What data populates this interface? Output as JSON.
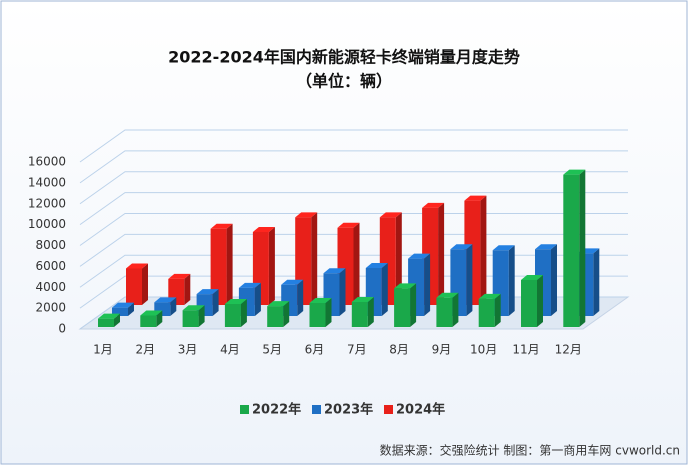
{
  "chart_data": {
    "type": "bar3d",
    "title": "2022-2024年国内新能源轻卡终端销量月度走势",
    "subtitle": "（单位：辆）",
    "source": "数据来源：交强险统计  制图：第一商用车网 cvworld.cn",
    "categories": [
      "1月",
      "2月",
      "3月",
      "4月",
      "5月",
      "6月",
      "7月",
      "8月",
      "9月",
      "10月",
      "11月",
      "12月"
    ],
    "series": [
      {
        "name": "2022年",
        "color": "#1aa84a",
        "values": [
          800,
          1100,
          1600,
          2200,
          2000,
          2300,
          2400,
          3700,
          2800,
          2700,
          4500,
          14600
        ]
      },
      {
        "name": "2023年",
        "color": "#1f6fc4",
        "values": [
          800,
          1300,
          2100,
          2700,
          3000,
          4100,
          4600,
          5500,
          6400,
          6300,
          6400,
          6000
        ]
      },
      {
        "name": "2024年",
        "color": "#e8201a",
        "values": [
          3500,
          2500,
          7300,
          7000,
          8400,
          7400,
          8400,
          9300,
          10000,
          null,
          null,
          null
        ]
      }
    ],
    "ylim": [
      0,
      16000
    ],
    "yticks": [
      0,
      2000,
      4000,
      6000,
      8000,
      10000,
      12000,
      14000,
      16000
    ],
    "grid": true,
    "legend": "bottom"
  }
}
